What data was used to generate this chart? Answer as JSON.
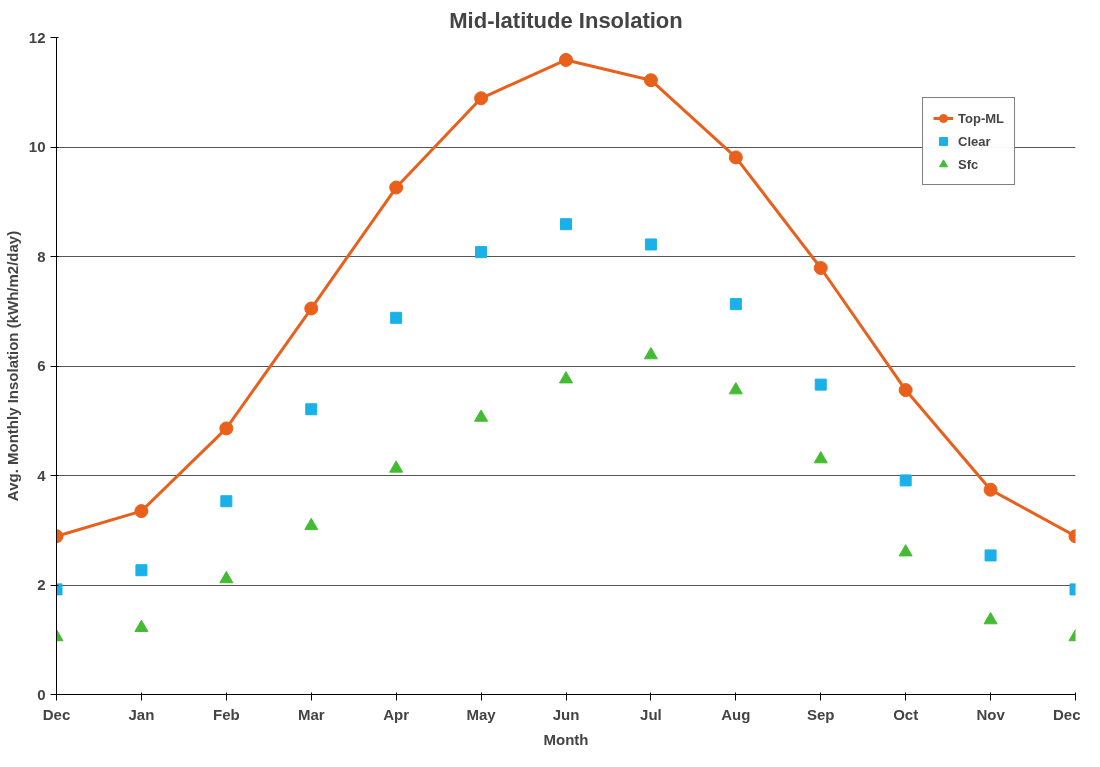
{
  "chart_data": {
    "type": "line",
    "title": "Mid-latitude Insolation",
    "xlabel": "Month",
    "ylabel": "Avg. Monthly Insolation (kWh/m2/day)",
    "categories": [
      "Dec",
      "Jan",
      "Feb",
      "Mar",
      "Apr",
      "May",
      "Jun",
      "Jul",
      "Aug",
      "Sep",
      "Oct",
      "Nov",
      "Dec"
    ],
    "ylim": [
      0,
      12
    ],
    "yticks": [
      0,
      2,
      4,
      6,
      8,
      10,
      12
    ],
    "grid": "y",
    "legend": "top right",
    "series": [
      {
        "name": "Top-ML",
        "type": "line",
        "marker": "circle",
        "color": "#e8601c",
        "values": [
          2.89,
          3.35,
          4.86,
          7.05,
          9.26,
          10.89,
          11.59,
          11.22,
          9.81,
          7.79,
          5.56,
          3.74,
          2.89
        ]
      },
      {
        "name": "Clear",
        "type": "scatter",
        "marker": "square",
        "color": "#1ab0e8",
        "values": [
          1.92,
          2.27,
          3.53,
          5.21,
          6.88,
          8.08,
          8.59,
          8.22,
          7.13,
          5.66,
          3.91,
          2.54,
          1.92
        ]
      },
      {
        "name": "Sfc",
        "type": "scatter",
        "marker": "triangle",
        "color": "#44bb33",
        "values": [
          1.05,
          1.22,
          2.11,
          3.08,
          4.13,
          5.06,
          5.76,
          6.2,
          5.56,
          4.3,
          2.6,
          1.36,
          1.05
        ]
      }
    ]
  }
}
